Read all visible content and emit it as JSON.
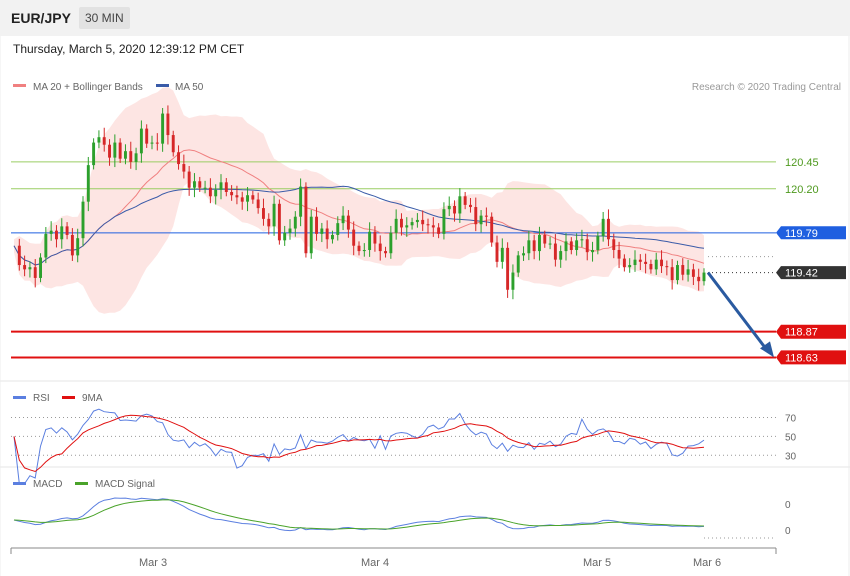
{
  "header": {
    "symbol": "EUR/JPY",
    "timeframe": "30 MIN"
  },
  "timestamp": "Thursday, March 5, 2020 12:39:12 PM CET",
  "credit": "Research © 2020 Trading Central",
  "colors": {
    "candle_up": "#2ca02c",
    "candle_down": "#d62728",
    "bollinger_fill": "#fde0de",
    "ma20": "#f08080",
    "ma50": "#3a5ba8",
    "level_resistance": "#9acd63",
    "level_pivot": "#1f5fe0",
    "level_support": "#e01010",
    "level_current": "#333333",
    "forecast_arrow": "#2a5aa0",
    "rsi": "#5b7fe0",
    "rsi_ma": "#e01010",
    "macd": "#5b7fe0",
    "macd_signal": "#4aa32a"
  },
  "chart_data": [
    {
      "type": "candlestick",
      "title": "",
      "legend": [
        "MA 20 + Bollinger Bands",
        "MA 50"
      ],
      "ylim": [
        118.42,
        121.38
      ],
      "x_tick_labels": [
        "Mar 3",
        "Mar 4",
        "Mar 5",
        "Mar 6"
      ],
      "levels": [
        {
          "value": 120.45,
          "label": "120.45",
          "kind": "resistance"
        },
        {
          "value": 120.2,
          "label": "120.20",
          "kind": "resistance"
        },
        {
          "value": 119.79,
          "label": "119.79",
          "kind": "pivot"
        },
        {
          "value": 119.42,
          "label": "119.42",
          "kind": "current"
        },
        {
          "value": 118.87,
          "label": "118.87",
          "kind": "support"
        },
        {
          "value": 118.63,
          "label": "118.63",
          "kind": "support"
        }
      ],
      "forecast": {
        "from": 119.42,
        "to": 118.63,
        "direction": "down"
      },
      "close": [
        119.67,
        119.49,
        119.45,
        119.47,
        119.37,
        119.56,
        119.78,
        119.81,
        119.73,
        119.85,
        119.77,
        119.58,
        119.74,
        120.08,
        120.42,
        120.63,
        120.68,
        120.61,
        120.49,
        120.63,
        120.48,
        120.55,
        120.45,
        120.53,
        120.76,
        120.62,
        120.63,
        120.62,
        120.9,
        120.7,
        120.54,
        120.43,
        120.36,
        120.21,
        120.27,
        120.21,
        120.21,
        120.13,
        120.19,
        120.26,
        120.17,
        120.14,
        120.12,
        120.08,
        120.14,
        120.1,
        120.02,
        119.92,
        119.85,
        120.06,
        119.72,
        119.79,
        119.83,
        119.94,
        120.22,
        119.6,
        119.94,
        119.78,
        119.83,
        119.73,
        119.77,
        119.88,
        119.95,
        119.82,
        119.67,
        119.62,
        119.63,
        119.8,
        119.69,
        119.62,
        119.6,
        119.79,
        119.92,
        119.84,
        119.86,
        119.89,
        119.91,
        119.87,
        119.86,
        119.84,
        119.78,
        120.01,
        120.04,
        119.97,
        120.13,
        120.05,
        120.03,
        119.87,
        119.95,
        119.94,
        119.7,
        119.52,
        119.65,
        119.26,
        119.42,
        119.58,
        119.6,
        119.72,
        119.62,
        119.77,
        119.69,
        119.69,
        119.54,
        119.62,
        119.71,
        119.63,
        119.72,
        119.73,
        119.61,
        119.63,
        119.76,
        119.92,
        119.73,
        119.63,
        119.55,
        119.47,
        119.49,
        119.54,
        119.52,
        119.5,
        119.45,
        119.54,
        119.48,
        119.47,
        119.35,
        119.49,
        119.4,
        119.45,
        119.38,
        119.34,
        119.42
      ]
    },
    {
      "type": "line",
      "title": "RSI",
      "legend": [
        "RSI",
        "9MA"
      ],
      "y_ticks": [
        70,
        50,
        30
      ],
      "ylim": [
        25,
        78
      ]
    },
    {
      "type": "line",
      "title": "MACD",
      "legend": [
        "MACD",
        "MACD Signal"
      ],
      "y_tick_labels": [
        "0",
        "0"
      ]
    }
  ]
}
